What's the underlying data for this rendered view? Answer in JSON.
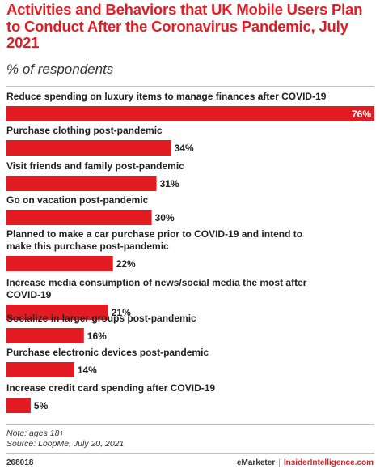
{
  "header": {
    "title": "Activities and Behaviors that UK Mobile Users Plan to Conduct After the Coronavirus Pandemic, July 2021",
    "subtitle": "% of respondents"
  },
  "colors": {
    "accent": "#e31c24",
    "bar": "#e31c24",
    "value_inside": "#ffffff",
    "value_outside": "#222222"
  },
  "chart_data": {
    "type": "bar",
    "orientation": "horizontal",
    "title": "Activities and Behaviors that UK Mobile Users Plan to Conduct After the Coronavirus Pandemic, July 2021",
    "subtitle": "% of respondents",
    "categories": [
      "Reduce spending on luxury items to manage finances after COVID-19",
      "Purchase clothing post-pandemic",
      "Visit friends and family post-pandemic",
      "Go on vacation post-pandemic",
      "Planned to make a car purchase prior to COVID-19 and intend to make this purchase post-pandemic",
      "Increase media consumption of news/social media the most after COVID-19",
      "Socialize in larger groups post-pandemic",
      "Purchase electronic devices post-pandemic",
      "Increase credit card spending after COVID-19"
    ],
    "values": [
      76,
      34,
      31,
      30,
      22,
      21,
      16,
      14,
      5
    ],
    "value_labels": [
      "76%",
      "34%",
      "31%",
      "30%",
      "22%",
      "21%",
      "16%",
      "14%",
      "5%"
    ],
    "xlim": [
      0,
      76
    ],
    "grid": false,
    "legend": "none"
  },
  "footer": {
    "note": "Note: ages 18+",
    "source": "Source: LoopMe, July 20, 2021",
    "chart_id": "268018",
    "brand_primary": "eMarketer",
    "brand_separator": "|",
    "brand_secondary": "InsiderIntelligence.com"
  }
}
